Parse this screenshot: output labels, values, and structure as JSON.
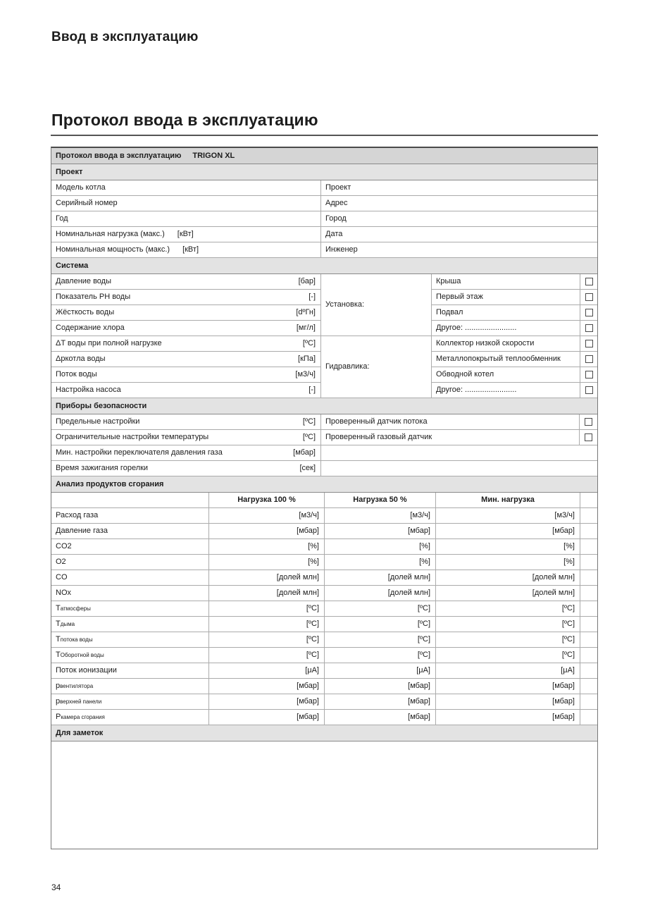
{
  "page": {
    "title": "Ввод в эксплуатацию",
    "section_title": "Протокол ввода в эксплуатацию",
    "page_number": "34"
  },
  "protocol": {
    "header_title": "Протокол ввода в эксплуатацию",
    "header_model": "TRIGON XL",
    "sections": {
      "project": {
        "title": "Проект",
        "rows": [
          {
            "left": "Модель котла",
            "unit": "",
            "right": "Проект"
          },
          {
            "left": "Серийный номер",
            "unit": "",
            "right": "Адрес"
          },
          {
            "left": "Год",
            "unit": "",
            "right": "Город"
          },
          {
            "left": "Номинальная нагрузка (макс.)",
            "unit": "[кВт]",
            "right": "Дата"
          },
          {
            "left": "Номинальная мощность (макс.)",
            "unit": "[кВт]",
            "right": "Инженер"
          }
        ]
      },
      "system": {
        "title": "Система",
        "left_rows": [
          {
            "label": "Давление воды",
            "unit": "[бар]"
          },
          {
            "label": "Показатель PH воды",
            "unit": "[-]"
          },
          {
            "label": "Жёсткость воды",
            "unit": "[dºГн]"
          },
          {
            "label": "Содержание хлора",
            "unit": "[мг/л]"
          },
          {
            "label": "ΔT воды при полной нагрузке",
            "unit": "[ºC]"
          },
          {
            "label": "Δpкотла воды",
            "unit": "[кПа]"
          },
          {
            "label": "Поток воды",
            "unit": "[м3/ч]"
          },
          {
            "label": "Настройка насоса",
            "unit": "[-]"
          }
        ],
        "groups": [
          {
            "label": "Установка:",
            "items": [
              "Крыша",
              "Первый этаж",
              "Подвал",
              "Другое: ........................"
            ]
          },
          {
            "label": "Гидравлика:",
            "items": [
              "Коллектор низкой скорости",
              "Металлопокрытый теплообменник",
              "Обводной котел",
              "Другое: ........................"
            ]
          }
        ]
      },
      "safety": {
        "title": "Приборы безопасности",
        "left_rows": [
          {
            "label": "Предельные настройки",
            "unit": "[ºC]"
          },
          {
            "label": "Ограничительные настройки температуры",
            "unit": "[ºC]"
          },
          {
            "label": "Мин. настройки переключателя давления газа",
            "unit": "[мбар]"
          },
          {
            "label": "Время зажигания горелки",
            "unit": "[сек]"
          }
        ],
        "checks": [
          "Проверенный датчик потока",
          "Проверенный газовый датчик"
        ]
      },
      "analysis": {
        "title": "Анализ продуктов сгорания",
        "col_headers": [
          "Нагрузка 100 %",
          "Нагрузка 50 %",
          "Мин. нагрузка"
        ],
        "rows": [
          {
            "main": "Расход газа",
            "sub": "",
            "unit": "[м3/ч]"
          },
          {
            "main": "Давление газа",
            "sub": "",
            "unit": "[мбар]"
          },
          {
            "main": "CO2",
            "sub": "",
            "unit": "[%]"
          },
          {
            "main": "O2",
            "sub": "",
            "unit": "[%]"
          },
          {
            "main": "CO",
            "sub": "",
            "unit": "[долей млн]"
          },
          {
            "main": "NOx",
            "sub": "",
            "unit": "[долей млн]"
          },
          {
            "main": "T",
            "sub": "атмосферы",
            "unit": "[ºC]"
          },
          {
            "main": "T",
            "sub": "дыма",
            "unit": "[ºC]"
          },
          {
            "main": "T",
            "sub": "потока воды",
            "unit": "[ºC]"
          },
          {
            "main": "T",
            "sub": "Оборотной воды",
            "unit": "[ºC]"
          },
          {
            "main": "Поток ионизации",
            "sub": "",
            "unit": "[μА]"
          },
          {
            "main": "p",
            "sub": "вентилятора",
            "unit": "[мбар]"
          },
          {
            "main": "p",
            "sub": "верхней панели",
            "unit": "[мбар]"
          },
          {
            "main": "P",
            "sub": "камера сгорания",
            "unit": "[мбар]"
          }
        ]
      },
      "notes": {
        "title": "Для заметок"
      }
    }
  }
}
